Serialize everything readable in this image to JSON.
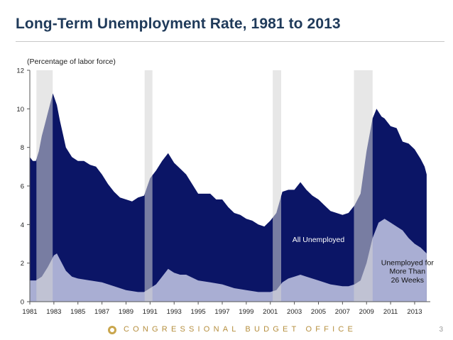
{
  "slide": {
    "title": "Long-Term Unemployment Rate, 1981 to 2013",
    "footer_text": "CONGRESSIONAL BUDGET OFFICE",
    "page_number": "3"
  },
  "colors": {
    "all_unemployed": "#0b1566",
    "long_term": "#a9aed3",
    "recession_shading": "#d4d4d4",
    "title": "#1f3a5a",
    "footer": "#b68f3f"
  },
  "chart_data": {
    "type": "area",
    "title": "Long-Term Unemployment Rate, 1981 to 2013",
    "unit_label": "(Percentage of labor force)",
    "xlim": [
      1981,
      2014.3
    ],
    "ylim": [
      0,
      12
    ],
    "x_ticks": [
      1981,
      1983,
      1985,
      1987,
      1989,
      1991,
      1993,
      1995,
      1997,
      1999,
      2001,
      2003,
      2005,
      2007,
      2009,
      2011,
      2013
    ],
    "y_ticks": [
      0,
      2,
      4,
      6,
      8,
      10,
      12
    ],
    "grid": false,
    "recessions": [
      [
        1981.55,
        1982.9
      ],
      [
        1990.55,
        1991.2
      ],
      [
        2001.2,
        2001.9
      ],
      [
        2007.95,
        2009.5
      ]
    ],
    "series": [
      {
        "name": "All Unemployed",
        "x": [
          1981.0,
          1981.25,
          1981.5,
          1981.75,
          1982.0,
          1982.25,
          1982.5,
          1982.75,
          1982.92,
          1983.25,
          1983.5,
          1983.75,
          1984.0,
          1984.5,
          1985.0,
          1985.5,
          1986.0,
          1986.5,
          1987.0,
          1987.5,
          1988.0,
          1988.5,
          1989.0,
          1989.5,
          1990.0,
          1990.5,
          1991.0,
          1991.5,
          1992.0,
          1992.5,
          1993.0,
          1993.5,
          1994.0,
          1994.5,
          1995.0,
          1995.5,
          1996.0,
          1996.5,
          1997.0,
          1997.5,
          1998.0,
          1998.5,
          1999.0,
          1999.5,
          2000.0,
          2000.5,
          2001.0,
          2001.5,
          2002.0,
          2002.5,
          2003.0,
          2003.5,
          2004.0,
          2004.5,
          2005.0,
          2005.5,
          2006.0,
          2006.5,
          2007.0,
          2007.5,
          2008.0,
          2008.5,
          2009.0,
          2009.5,
          2009.83,
          2010.25,
          2010.5,
          2011.0,
          2011.5,
          2012.0,
          2012.5,
          2013.0,
          2013.5,
          2013.83,
          2014.0
        ],
        "y": [
          7.5,
          7.3,
          7.3,
          7.8,
          8.6,
          9.2,
          9.8,
          10.4,
          10.8,
          10.2,
          9.4,
          8.7,
          8.0,
          7.5,
          7.3,
          7.3,
          7.1,
          7.0,
          6.6,
          6.1,
          5.7,
          5.4,
          5.3,
          5.2,
          5.4,
          5.5,
          6.4,
          6.8,
          7.3,
          7.7,
          7.2,
          6.9,
          6.6,
          6.1,
          5.6,
          5.6,
          5.6,
          5.3,
          5.3,
          4.9,
          4.6,
          4.5,
          4.3,
          4.2,
          4.0,
          3.9,
          4.2,
          4.6,
          5.7,
          5.8,
          5.8,
          6.2,
          5.8,
          5.5,
          5.3,
          5.0,
          4.7,
          4.6,
          4.5,
          4.6,
          5.0,
          5.6,
          7.8,
          9.5,
          10.0,
          9.6,
          9.5,
          9.1,
          9.0,
          8.3,
          8.2,
          7.9,
          7.4,
          7.0,
          6.6
        ]
      },
      {
        "name": "Unemployed for More Than 26 Weeks",
        "x": [
          1981.0,
          1981.5,
          1982.0,
          1982.5,
          1983.0,
          1983.25,
          1983.5,
          1984.0,
          1984.5,
          1985.0,
          1986.0,
          1987.0,
          1988.0,
          1989.0,
          1990.0,
          1990.5,
          1991.0,
          1991.5,
          1992.0,
          1992.5,
          1993.0,
          1993.5,
          1994.0,
          1995.0,
          1996.0,
          1997.0,
          1998.0,
          1999.0,
          2000.0,
          2001.0,
          2001.5,
          2002.0,
          2002.5,
          2003.0,
          2003.5,
          2004.0,
          2005.0,
          2006.0,
          2007.0,
          2007.5,
          2008.0,
          2008.5,
          2009.0,
          2009.5,
          2010.0,
          2010.5,
          2011.0,
          2011.5,
          2012.0,
          2012.5,
          2013.0,
          2013.5,
          2014.0
        ],
        "y": [
          1.1,
          1.1,
          1.3,
          1.8,
          2.4,
          2.5,
          2.2,
          1.6,
          1.3,
          1.2,
          1.1,
          1.0,
          0.8,
          0.6,
          0.5,
          0.5,
          0.7,
          0.9,
          1.3,
          1.7,
          1.5,
          1.4,
          1.4,
          1.1,
          1.0,
          0.9,
          0.7,
          0.6,
          0.5,
          0.5,
          0.6,
          1.0,
          1.2,
          1.3,
          1.4,
          1.3,
          1.1,
          0.9,
          0.8,
          0.8,
          0.9,
          1.1,
          2.0,
          3.3,
          4.1,
          4.3,
          4.1,
          3.9,
          3.7,
          3.3,
          3.0,
          2.8,
          2.5
        ]
      }
    ],
    "annotations": [
      {
        "text": "All Unemployed",
        "x": 2005.0,
        "y": 3.1
      },
      {
        "text": "Unemployed for",
        "x": 2012.4,
        "y": 1.9
      },
      {
        "text": "More Than",
        "x": 2012.4,
        "y": 1.45
      },
      {
        "text": "26 Weeks",
        "x": 2012.4,
        "y": 1.0
      }
    ]
  }
}
